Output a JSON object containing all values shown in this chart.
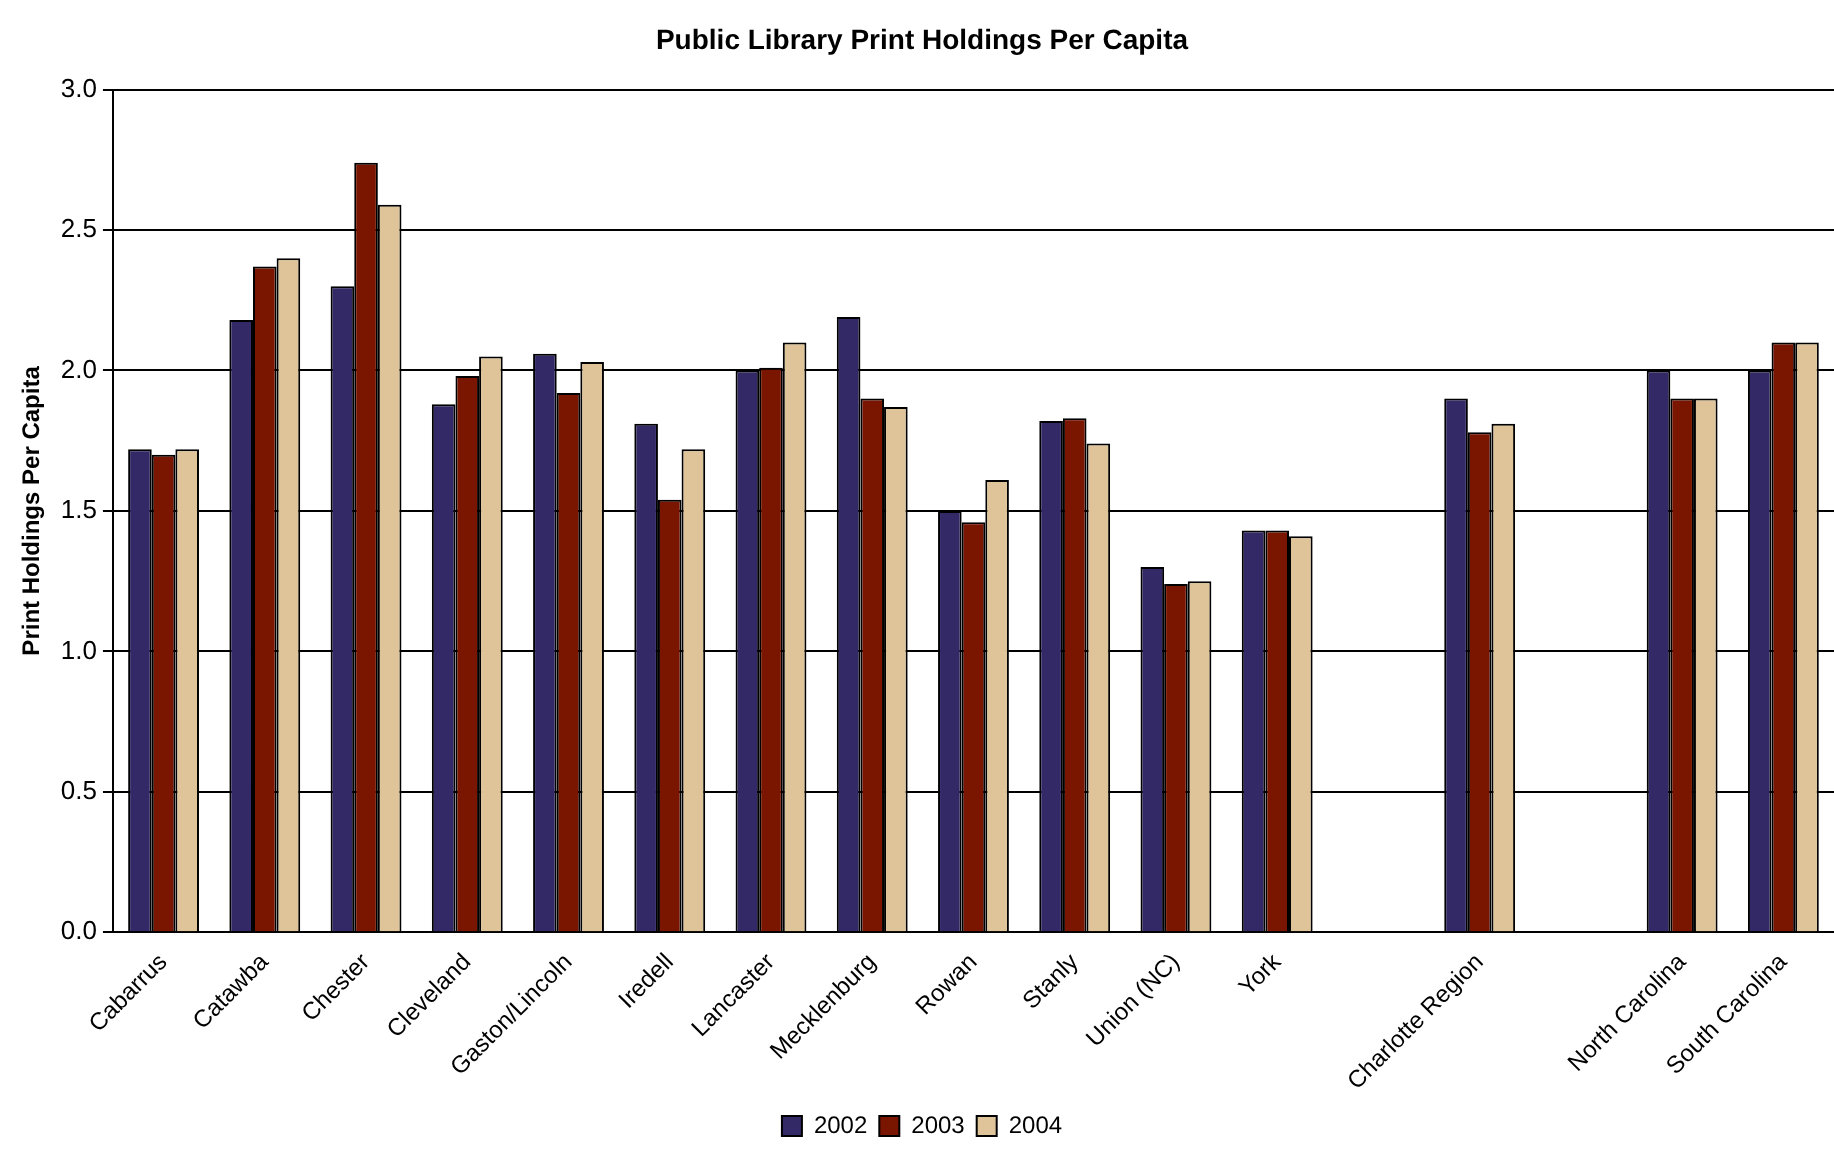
{
  "chart_data": {
    "type": "bar",
    "title": "Public Library Print Holdings Per Capita",
    "ylabel": "Print Holdings Per Capita",
    "categories": [
      "Cabarrus",
      "Catawba",
      "Chester",
      "Cleveland",
      "Gaston/Lincoln",
      "Iredell",
      "Lancaster",
      "Mecklenburg",
      "Rowan",
      "Stanly",
      "Union (NC)",
      "York",
      null,
      "Charlotte Region",
      null,
      "North Carolina",
      "South Carolina"
    ],
    "series": [
      {
        "name": "2002",
        "color": "#332966",
        "values": [
          1.72,
          2.18,
          2.3,
          1.88,
          2.06,
          1.81,
          2.0,
          2.19,
          1.5,
          1.82,
          1.3,
          1.43,
          null,
          1.9,
          null,
          2.0,
          2.0
        ]
      },
      {
        "name": "2003",
        "color": "#7a1500",
        "values": [
          1.7,
          2.37,
          2.74,
          1.98,
          1.92,
          1.54,
          2.01,
          1.9,
          1.46,
          1.83,
          1.24,
          1.43,
          null,
          1.78,
          null,
          1.9,
          2.1
        ]
      },
      {
        "name": "2004",
        "color": "#dfc499",
        "values": [
          1.72,
          2.4,
          2.59,
          2.05,
          2.03,
          1.72,
          2.1,
          1.87,
          1.61,
          1.74,
          1.25,
          1.41,
          null,
          1.81,
          null,
          1.9,
          2.1
        ]
      }
    ],
    "ylim": [
      0,
      3
    ],
    "yticks": [
      {
        "value": 0,
        "label": "0.0"
      },
      {
        "value": 0.5,
        "label": "0.5"
      },
      {
        "value": 1,
        "label": "1.0"
      },
      {
        "value": 1.5,
        "label": "1.5"
      },
      {
        "value": 2,
        "label": "2.0"
      },
      {
        "value": 2.5,
        "label": "2.5"
      },
      {
        "value": 3,
        "label": "3.0"
      }
    ],
    "grid": "y",
    "legend": "bottom"
  }
}
